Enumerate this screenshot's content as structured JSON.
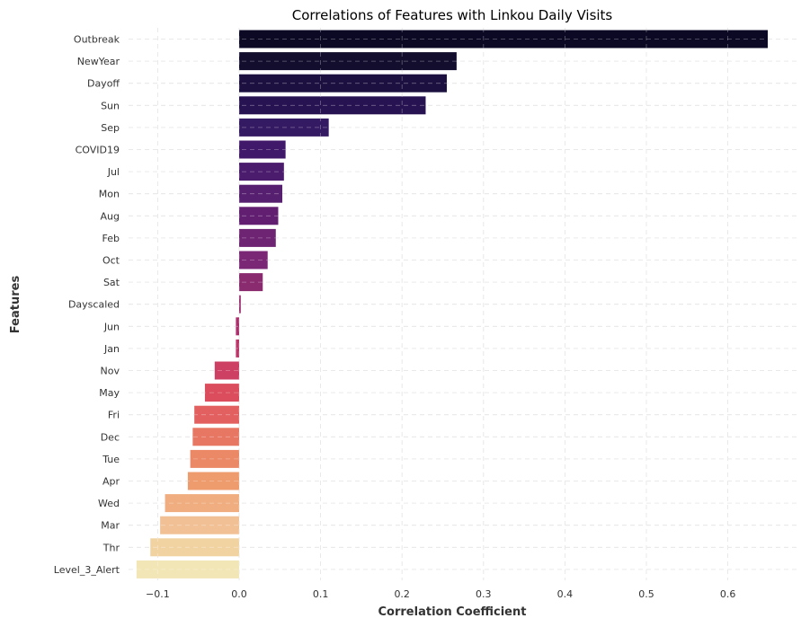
{
  "chart_data": {
    "type": "bar",
    "orientation": "horizontal",
    "title": "Correlations of Features with Linkou Daily Visits",
    "xlabel": "Correlation Coefficient",
    "ylabel": "Features",
    "xlim": [
      -0.16,
      0.69
    ],
    "xticks": [
      -0.1,
      0.0,
      0.1,
      0.2,
      0.3,
      0.4,
      0.5,
      0.6
    ],
    "xtick_labels": [
      "−0.1",
      "0.0",
      "0.1",
      "0.2",
      "0.3",
      "0.4",
      "0.5",
      "0.6"
    ],
    "grid": true,
    "colormap": "magma (dark to light, top to bottom)",
    "categories": [
      "Outbreak",
      "NewYear",
      "Dayoff",
      "Sun",
      "Sep",
      "COVID19",
      "Jul",
      "Mon",
      "Aug",
      "Feb",
      "Oct",
      "Sat",
      "Dayscaled",
      "Jun",
      "Jan",
      "Nov",
      "May",
      "Fri",
      "Dec",
      "Tue",
      "Apr",
      "Wed",
      "Mar",
      "Thr",
      "Level_3_Alert"
    ],
    "values": [
      0.649,
      0.267,
      0.255,
      0.229,
      0.11,
      0.057,
      0.055,
      0.053,
      0.048,
      0.045,
      0.035,
      0.029,
      0.002,
      -0.004,
      -0.004,
      -0.03,
      -0.042,
      -0.055,
      -0.057,
      -0.06,
      -0.063,
      -0.091,
      -0.097,
      -0.109,
      -0.126
    ],
    "colors": [
      "#0b0924",
      "#130e2e",
      "#1c1040",
      "#271352",
      "#341a63",
      "#40196a",
      "#4b1c6d",
      "#571f6f",
      "#621f72",
      "#6e2373",
      "#7a2775",
      "#8a2b70",
      "#9a2d6e",
      "#ab316c",
      "#bb3767",
      "#cd3f63",
      "#db4d5c",
      "#e36060",
      "#e77663",
      "#eb8866",
      "#ee9b6d",
      "#f0ae80",
      "#f1c195",
      "#f1d3a2",
      "#f2e5b6"
    ]
  }
}
